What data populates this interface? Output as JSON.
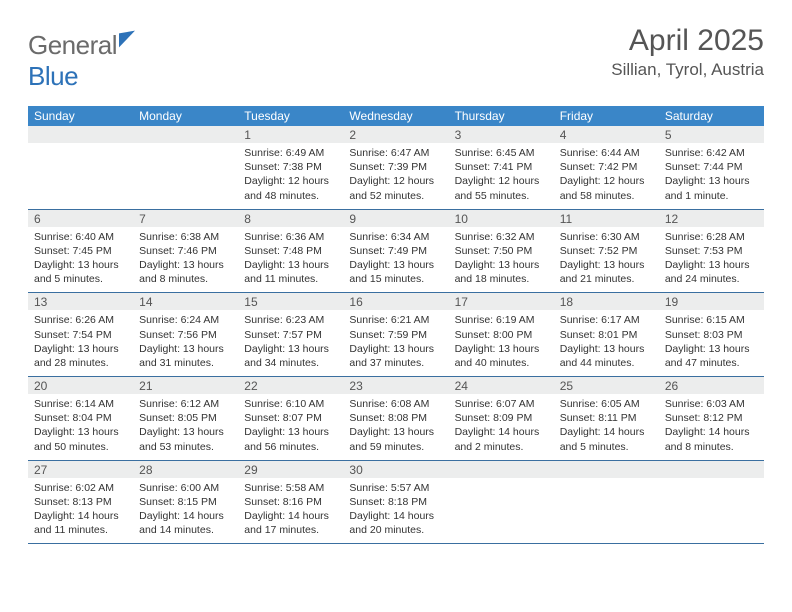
{
  "brand": {
    "part1": "General",
    "part2": "Blue"
  },
  "title": "April 2025",
  "location": "Sillian, Tyrol, Austria",
  "colors": {
    "header_bar": "#3a86c8",
    "daynum_bg": "#eceded",
    "week_divider": "#3a6fa0",
    "text_muted": "#555555",
    "brand_blue": "#2d72b8",
    "brand_gray": "#6b6b6b"
  },
  "days_of_week": [
    "Sunday",
    "Monday",
    "Tuesday",
    "Wednesday",
    "Thursday",
    "Friday",
    "Saturday"
  ],
  "grid": [
    [
      null,
      null,
      {
        "n": "1",
        "sr": "6:49 AM",
        "ss": "7:38 PM",
        "dl": "12 hours and 48 minutes."
      },
      {
        "n": "2",
        "sr": "6:47 AM",
        "ss": "7:39 PM",
        "dl": "12 hours and 52 minutes."
      },
      {
        "n": "3",
        "sr": "6:45 AM",
        "ss": "7:41 PM",
        "dl": "12 hours and 55 minutes."
      },
      {
        "n": "4",
        "sr": "6:44 AM",
        "ss": "7:42 PM",
        "dl": "12 hours and 58 minutes."
      },
      {
        "n": "5",
        "sr": "6:42 AM",
        "ss": "7:44 PM",
        "dl": "13 hours and 1 minute."
      }
    ],
    [
      {
        "n": "6",
        "sr": "6:40 AM",
        "ss": "7:45 PM",
        "dl": "13 hours and 5 minutes."
      },
      {
        "n": "7",
        "sr": "6:38 AM",
        "ss": "7:46 PM",
        "dl": "13 hours and 8 minutes."
      },
      {
        "n": "8",
        "sr": "6:36 AM",
        "ss": "7:48 PM",
        "dl": "13 hours and 11 minutes."
      },
      {
        "n": "9",
        "sr": "6:34 AM",
        "ss": "7:49 PM",
        "dl": "13 hours and 15 minutes."
      },
      {
        "n": "10",
        "sr": "6:32 AM",
        "ss": "7:50 PM",
        "dl": "13 hours and 18 minutes."
      },
      {
        "n": "11",
        "sr": "6:30 AM",
        "ss": "7:52 PM",
        "dl": "13 hours and 21 minutes."
      },
      {
        "n": "12",
        "sr": "6:28 AM",
        "ss": "7:53 PM",
        "dl": "13 hours and 24 minutes."
      }
    ],
    [
      {
        "n": "13",
        "sr": "6:26 AM",
        "ss": "7:54 PM",
        "dl": "13 hours and 28 minutes."
      },
      {
        "n": "14",
        "sr": "6:24 AM",
        "ss": "7:56 PM",
        "dl": "13 hours and 31 minutes."
      },
      {
        "n": "15",
        "sr": "6:23 AM",
        "ss": "7:57 PM",
        "dl": "13 hours and 34 minutes."
      },
      {
        "n": "16",
        "sr": "6:21 AM",
        "ss": "7:59 PM",
        "dl": "13 hours and 37 minutes."
      },
      {
        "n": "17",
        "sr": "6:19 AM",
        "ss": "8:00 PM",
        "dl": "13 hours and 40 minutes."
      },
      {
        "n": "18",
        "sr": "6:17 AM",
        "ss": "8:01 PM",
        "dl": "13 hours and 44 minutes."
      },
      {
        "n": "19",
        "sr": "6:15 AM",
        "ss": "8:03 PM",
        "dl": "13 hours and 47 minutes."
      }
    ],
    [
      {
        "n": "20",
        "sr": "6:14 AM",
        "ss": "8:04 PM",
        "dl": "13 hours and 50 minutes."
      },
      {
        "n": "21",
        "sr": "6:12 AM",
        "ss": "8:05 PM",
        "dl": "13 hours and 53 minutes."
      },
      {
        "n": "22",
        "sr": "6:10 AM",
        "ss": "8:07 PM",
        "dl": "13 hours and 56 minutes."
      },
      {
        "n": "23",
        "sr": "6:08 AM",
        "ss": "8:08 PM",
        "dl": "13 hours and 59 minutes."
      },
      {
        "n": "24",
        "sr": "6:07 AM",
        "ss": "8:09 PM",
        "dl": "14 hours and 2 minutes."
      },
      {
        "n": "25",
        "sr": "6:05 AM",
        "ss": "8:11 PM",
        "dl": "14 hours and 5 minutes."
      },
      {
        "n": "26",
        "sr": "6:03 AM",
        "ss": "8:12 PM",
        "dl": "14 hours and 8 minutes."
      }
    ],
    [
      {
        "n": "27",
        "sr": "6:02 AM",
        "ss": "8:13 PM",
        "dl": "14 hours and 11 minutes."
      },
      {
        "n": "28",
        "sr": "6:00 AM",
        "ss": "8:15 PM",
        "dl": "14 hours and 14 minutes."
      },
      {
        "n": "29",
        "sr": "5:58 AM",
        "ss": "8:16 PM",
        "dl": "14 hours and 17 minutes."
      },
      {
        "n": "30",
        "sr": "5:57 AM",
        "ss": "8:18 PM",
        "dl": "14 hours and 20 minutes."
      },
      null,
      null,
      null
    ]
  ],
  "labels": {
    "sunrise": "Sunrise:",
    "sunset": "Sunset:",
    "daylight": "Daylight:"
  }
}
